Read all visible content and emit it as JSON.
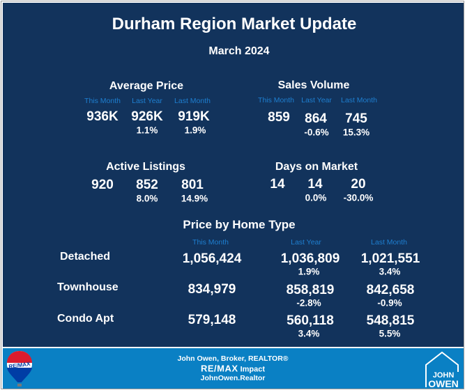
{
  "title": "Durham Region Market Update",
  "subtitle": "March 2024",
  "colors": {
    "background": "#12335c",
    "label": "#1e7fd0",
    "footer": "#0a80c4"
  },
  "metrics": [
    {
      "heading": "Average Price",
      "labels": [
        "This Month",
        "Last Year",
        "Last Month"
      ],
      "values": [
        "936K",
        "926K",
        "919K"
      ],
      "changes": [
        "1.1%",
        "1.9%"
      ]
    },
    {
      "heading": "Sales Volume",
      "labels": [
        "This Month",
        "Last Year",
        "Last Month"
      ],
      "values": [
        "859",
        "864",
        "745"
      ],
      "changes": [
        "-0.6%",
        "15.3%"
      ]
    },
    {
      "heading": "Active Listings",
      "values": [
        "920",
        "852",
        "801"
      ],
      "changes": [
        "8.0%",
        "14.9%"
      ]
    },
    {
      "heading": "Days on Market",
      "values": [
        "14",
        "14",
        "20"
      ],
      "changes": [
        "0.0%",
        "-30.0%"
      ]
    }
  ],
  "home_type": {
    "heading": "Price by Home Type",
    "columns": [
      "This Month",
      "Last Year",
      "Last Month"
    ],
    "rows": [
      {
        "type": "Detached",
        "values": [
          "1,056,424",
          "1,036,809",
          "1,021,551"
        ],
        "changes": [
          "1.9%",
          "3.4%"
        ]
      },
      {
        "type": "Townhouse",
        "values": [
          "834,979",
          "858,819",
          "842,658"
        ],
        "changes": [
          "-2.8%",
          "-0.9%"
        ]
      },
      {
        "type": "Condo Apt",
        "values": [
          "579,148",
          "560,118",
          "548,815"
        ],
        "changes": [
          "3.4%",
          "5.5%"
        ]
      }
    ]
  },
  "footer": {
    "line1": "John Owen, Broker, REALTOR®",
    "brand": "RE/MAX",
    "brand_suffix": "Impact",
    "website": "JohnOwen.Realtor",
    "left_logo": "RE/MAX",
    "right_logo": [
      "JOHN",
      "OWEN"
    ]
  }
}
